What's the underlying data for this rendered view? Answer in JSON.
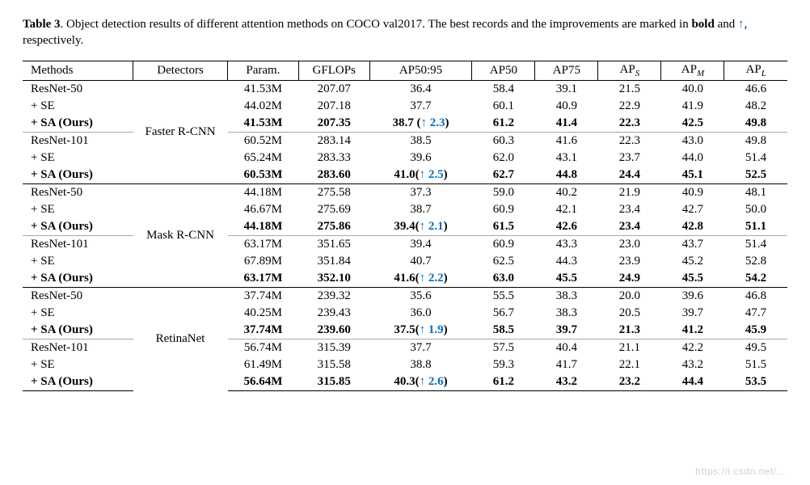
{
  "caption": {
    "label": "Table 3",
    "text_before": ". Object detection results of different attention methods on COCO val2017. The best records and the improvements are marked in ",
    "bold_word": "bold",
    "text_mid": " and ",
    "arrow": "↑",
    "text_after": ", respectively."
  },
  "columns": [
    "Methods",
    "Detectors",
    "Param.",
    "GFLOPs",
    "AP50:95",
    "AP50",
    "AP75",
    "APS",
    "APM",
    "APL"
  ],
  "detectors": [
    "Faster R-CNN",
    "Mask R-CNN",
    "RetinaNet"
  ],
  "methods_labels": [
    "ResNet-50",
    "+ SE",
    "+ SA (Ours)",
    "ResNet-101",
    "+ SE",
    "+ SA (Ours)"
  ],
  "blocks": [
    {
      "detector_index": 0,
      "groups": [
        [
          {
            "p": "41.53M",
            "g": "207.07",
            "a": "36.4",
            "a50": "58.4",
            "a75": "39.1",
            "as": "21.5",
            "am": "40.0",
            "al": "46.6",
            "bold": false
          },
          {
            "p": "44.02M",
            "g": "207.18",
            "a": "37.7",
            "a50": "60.1",
            "a75": "40.9",
            "as": "22.9",
            "am": "41.9",
            "al": "48.2",
            "bold": false
          },
          {
            "p": "41.53M",
            "g": "207.35",
            "a": "38.7",
            "imp": "2.3",
            "a50": "61.2",
            "a75": "41.4",
            "as": "22.3",
            "am": "42.5",
            "al": "49.8",
            "bold": true
          }
        ],
        [
          {
            "p": "60.52M",
            "g": "283.14",
            "a": "38.5",
            "a50": "60.3",
            "a75": "41.6",
            "as": "22.3",
            "am": "43.0",
            "al": "49.8",
            "bold": false
          },
          {
            "p": "65.24M",
            "g": "283.33",
            "a": "39.6",
            "a50": "62.0",
            "a75": "43.1",
            "as": "23.7",
            "am": "44.0",
            "al": "51.4",
            "bold": false
          },
          {
            "p": "60.53M",
            "g": "283.60",
            "a": "41.0",
            "imp": "2.5",
            "a50": "62.7",
            "a75": "44.8",
            "as": "24.4",
            "am": "45.1",
            "al": "52.5",
            "bold": true
          }
        ]
      ]
    },
    {
      "detector_index": 1,
      "groups": [
        [
          {
            "p": "44.18M",
            "g": "275.58",
            "a": "37.3",
            "a50": "59.0",
            "a75": "40.2",
            "as": "21.9",
            "am": "40.9",
            "al": "48.1",
            "bold": false
          },
          {
            "p": "46.67M",
            "g": "275.69",
            "a": "38.7",
            "a50": "60.9",
            "a75": "42.1",
            "as": "23.4",
            "am": "42.7",
            "al": "50.0",
            "bold": false
          },
          {
            "p": "44.18M",
            "g": "275.86",
            "a": "39.4",
            "imp": "2.1",
            "a50": "61.5",
            "a75": "42.6",
            "as": "23.4",
            "am": "42.8",
            "al": "51.1",
            "bold": true
          }
        ],
        [
          {
            "p": "63.17M",
            "g": "351.65",
            "a": "39.4",
            "a50": "60.9",
            "a75": "43.3",
            "as": "23.0",
            "am": "43.7",
            "al": "51.4",
            "bold": false
          },
          {
            "p": "67.89M",
            "g": "351.84",
            "a": "40.7",
            "a50": "62.5",
            "a75": "44.3",
            "as": "23.9",
            "am": "45.2",
            "al": "52.8",
            "bold": false
          },
          {
            "p": "63.17M",
            "g": "352.10",
            "a": "41.6",
            "imp": "2.2",
            "a50": "63.0",
            "a75": "45.5",
            "as": "24.9",
            "am": "45.5",
            "al": "54.2",
            "bold": true
          }
        ]
      ]
    },
    {
      "detector_index": 2,
      "groups": [
        [
          {
            "p": "37.74M",
            "g": "239.32",
            "a": "35.6",
            "a50": "55.5",
            "a75": "38.3",
            "as": "20.0",
            "am": "39.6",
            "al": "46.8",
            "bold": false
          },
          {
            "p": "40.25M",
            "g": "239.43",
            "a": "36.0",
            "a50": "56.7",
            "a75": "38.3",
            "as": "20.5",
            "am": "39.7",
            "al": "47.7",
            "bold": false
          },
          {
            "p": "37.74M",
            "g": "239.60",
            "a": "37.5",
            "imp": "1.9",
            "a50": "58.5",
            "a75": "39.7",
            "as": "21.3",
            "am": "41.2",
            "al": "45.9",
            "bold": true
          }
        ],
        [
          {
            "p": "56.74M",
            "g": "315.39",
            "a": "37.7",
            "a50": "57.5",
            "a75": "40.4",
            "as": "21.1",
            "am": "42.2",
            "al": "49.5",
            "bold": false
          },
          {
            "p": "61.49M",
            "g": "315.58",
            "a": "38.8",
            "a50": "59.3",
            "a75": "41.7",
            "as": "22.1",
            "am": "43.2",
            "al": "51.5",
            "bold": false
          },
          {
            "p": "56.64M",
            "g": "315.85",
            "a": "40.3",
            "imp": "2.6",
            "a50": "61.2",
            "a75": "43.2",
            "as": "23.2",
            "am": "44.4",
            "al": "53.5",
            "bold": true
          }
        ]
      ]
    }
  ],
  "style": {
    "background_color": "#ffffff",
    "text_color": "#000000",
    "improvement_color": "#0070c0",
    "rule_color": "#000000",
    "subrule_color": "#aaaaaa",
    "font_family": "Times New Roman",
    "base_fontsize_pt": 11,
    "caption_fontsize_pt": 11
  },
  "watermark": "https://i.csdn.net/..."
}
